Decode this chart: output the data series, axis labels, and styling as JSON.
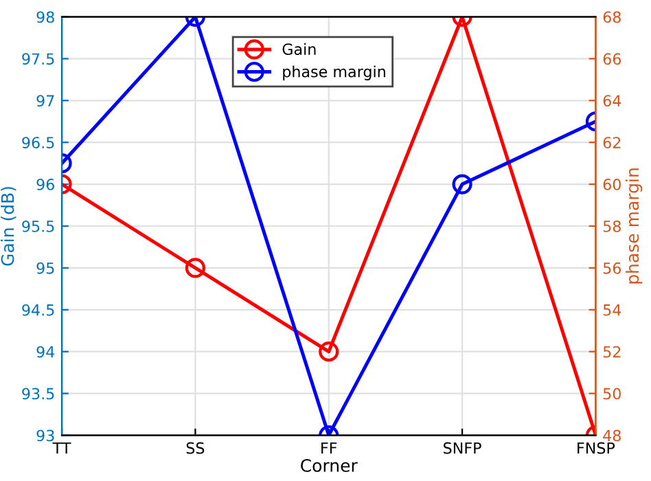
{
  "chart_data": {
    "type": "line",
    "xlabel": "Corner",
    "ylabel": "Gain (dB)",
    "y2label": "phase margin",
    "categories": [
      "TT",
      "SS",
      "FF",
      "SNFP",
      "FNSP"
    ],
    "series": [
      {
        "name": "Gain",
        "color": "#ff0000",
        "values": [
          96,
          95,
          94,
          98,
          93
        ]
      },
      {
        "name": "phase margin",
        "color": "#0000ff",
        "axis": "y2",
        "values": [
          61,
          68,
          48,
          60,
          63
        ]
      }
    ],
    "ylim": [
      93,
      98
    ],
    "yticks": [
      93,
      93.5,
      94,
      94.5,
      95,
      95.5,
      96,
      96.5,
      97,
      97.5,
      98
    ],
    "y2lim": [
      48,
      68
    ],
    "y2ticks": [
      48,
      50,
      52,
      54,
      56,
      58,
      60,
      62,
      64,
      66,
      68
    ],
    "grid": true,
    "legend": "top",
    "marker": "circle",
    "line_style": "solid"
  }
}
